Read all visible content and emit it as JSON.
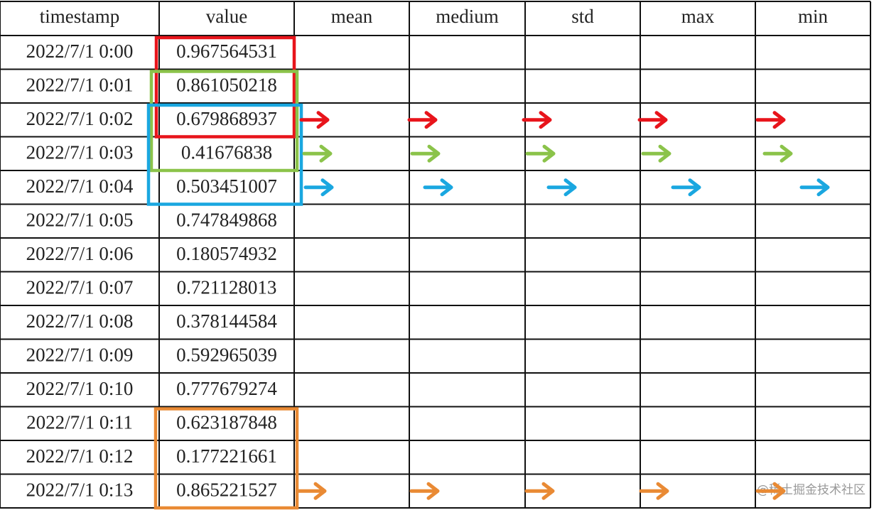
{
  "table": {
    "header": [
      "timestamp",
      "value",
      "mean",
      "medium",
      "std",
      "max",
      "min"
    ],
    "rows": [
      [
        "2022/7/1 0:00",
        "0.967564531"
      ],
      [
        "2022/7/1 0:01",
        "0.861050218"
      ],
      [
        "2022/7/1 0:02",
        "0.679868937"
      ],
      [
        "2022/7/1 0:03",
        "0.41676838"
      ],
      [
        "2022/7/1 0:04",
        "0.503451007"
      ],
      [
        "2022/7/1 0:05",
        "0.747849868"
      ],
      [
        "2022/7/1 0:06",
        "0.180574932"
      ],
      [
        "2022/7/1 0:07",
        "0.721128013"
      ],
      [
        "2022/7/1 0:08",
        "0.378144584"
      ],
      [
        "2022/7/1 0:09",
        "0.592965039"
      ],
      [
        "2022/7/1 0:10",
        "0.777679274"
      ],
      [
        "2022/7/1 0:11",
        "0.623187848"
      ],
      [
        "2022/7/1 0:12",
        "0.177221661"
      ],
      [
        "2022/7/1 0:13",
        "0.865221527"
      ]
    ]
  },
  "watermark": "@稀土掘金技术社区"
}
